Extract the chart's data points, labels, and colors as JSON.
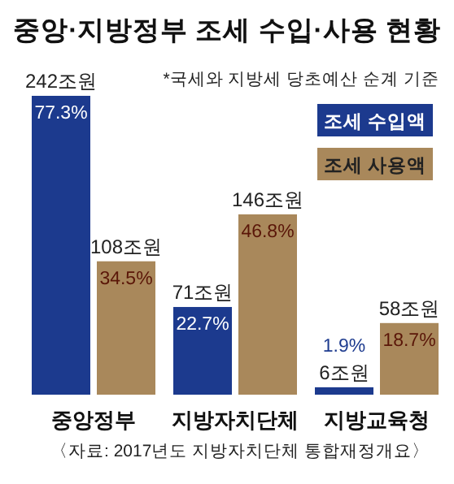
{
  "chart_data": {
    "type": "bar",
    "title": "중앙·지방정부 조세 수입·사용 현황",
    "categories": [
      "중앙정부",
      "지방자치단체",
      "지방교육청"
    ],
    "series": [
      {
        "name": "조세 수입액",
        "color": "#1c3a8e",
        "values": [
          242,
          71,
          6
        ],
        "value_labels": [
          "242조원",
          "71조원",
          "6조원"
        ]
      },
      {
        "name": "조세 사용액",
        "color": "#a9885b",
        "values": [
          108,
          146,
          58
        ],
        "value_labels": [
          "108조원",
          "146조원",
          "58조원"
        ]
      }
    ],
    "legend": "top right",
    "annotations": [
      "*국세와 지방세 당초예산 순계 기준",
      {
        "text": "77.3%",
        "x": "중앙정부",
        "y": 242
      },
      {
        "text": "34.5%",
        "x": "중앙정부",
        "y": 108
      },
      {
        "text": "22.7%",
        "x": "지방자치단체",
        "y": 71
      },
      {
        "text": "46.8%",
        "x": "지방자치단체",
        "y": 146
      },
      {
        "text": "1.9%",
        "x": "지방교육청",
        "y": 6
      },
      {
        "text": "18.7%",
        "x": "지방교육청",
        "y": 58
      },
      "〈자료: 2017년도 지방자치단체 통합재정개요〉"
    ]
  }
}
